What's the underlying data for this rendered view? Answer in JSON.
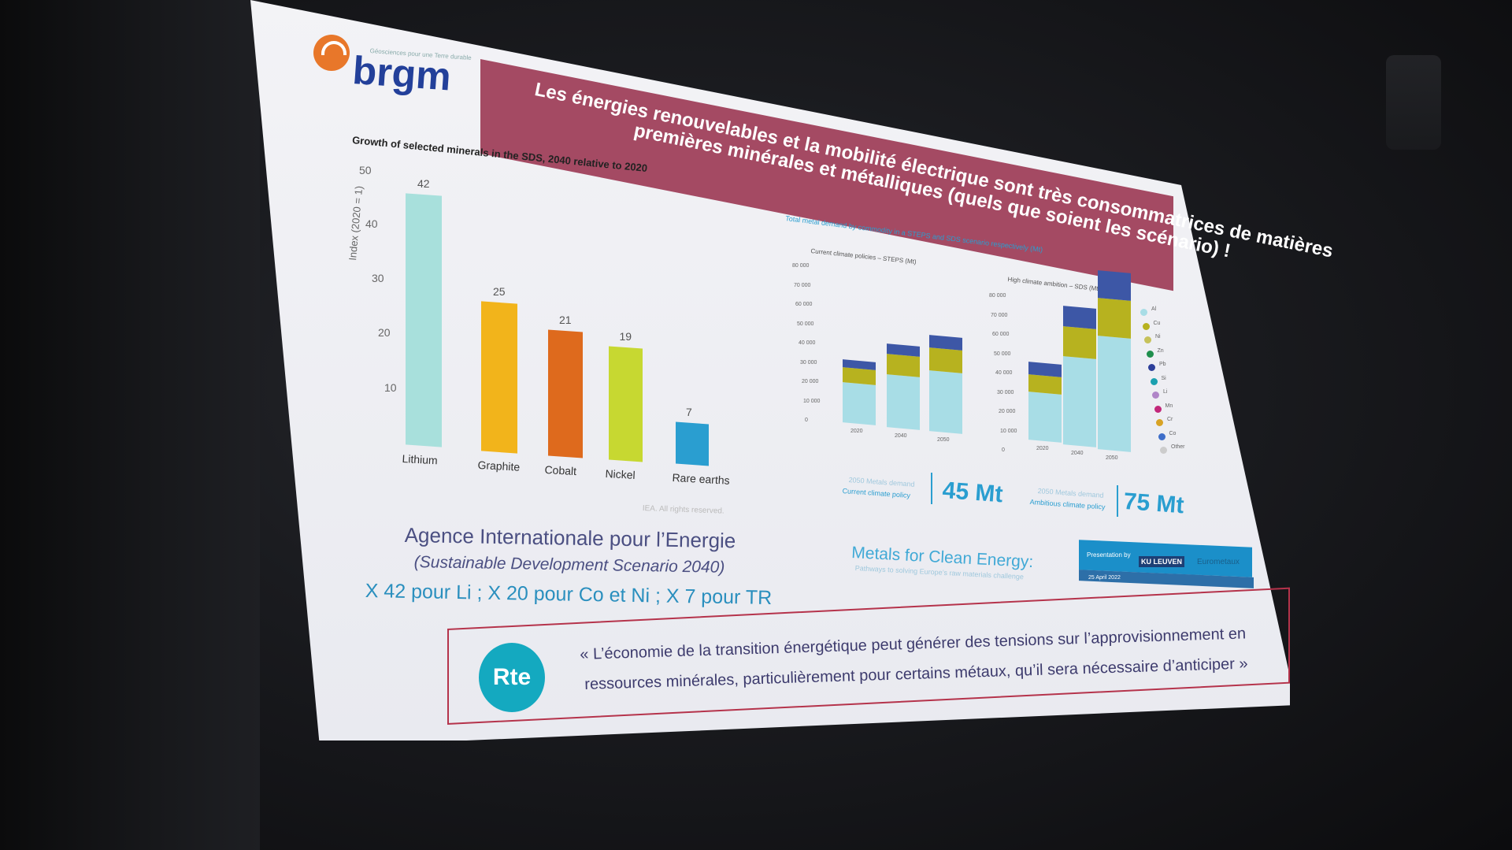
{
  "slide": {
    "logo": {
      "name": "brgm",
      "tagline": "Géosciences pour une Terre durable"
    },
    "banner": {
      "line1": "Les énergies renouvelables et la mobilité électrique sont très consommatrices de matières",
      "line2": "premières minérales et métalliques (quels que soient les scénario) !"
    },
    "left_chart": {
      "title": "Growth of selected minerals in the SDS, 2040 relative to 2020",
      "ylabel": "Index (2020 = 1)",
      "yticks": [
        "50",
        "40",
        "30",
        "20",
        "10"
      ],
      "credit": "IEA. All rights reserved."
    },
    "iea": {
      "line1": "Agence Internationale pour l’Energie",
      "line2": "(Sustainable Development Scenario 2040)",
      "line3": "X 42 pour Li ; X 20 pour Co et Ni  ; X 7 pour TR"
    },
    "right_chart": {
      "title": "Total metal demand by commodity in a STEPS and SDS scenario respectively (Mt)",
      "panel1_title": "Current climate policies – STEPS (Mt)",
      "panel2_title": "High climate ambition – SDS (Mt)",
      "yticks1": [
        "80 000",
        "70 000",
        "60 000",
        "50 000",
        "40 000",
        "30 000",
        "20 000",
        "10 000",
        "0"
      ],
      "yticks2": [
        "80 000",
        "70 000",
        "60 000",
        "50 000",
        "40 000",
        "30 000",
        "20 000",
        "10 000",
        "0"
      ],
      "xticks": [
        "2020",
        "2040",
        "2050"
      ],
      "legend": [
        "Al",
        "Cu",
        "Ni",
        "Zn",
        "Pb",
        "Si",
        "Li",
        "Mn",
        "Cr",
        "Co",
        "Other"
      ],
      "callout1_label1": "2050 Metals demand",
      "callout1_label2": "Current climate policy",
      "callout1_value": "45 Mt",
      "callout2_label1": "2050 Metals demand",
      "callout2_label2": "Ambitious climate policy",
      "callout2_value": "75 Mt",
      "metals_title": "Metals for Clean Energy:",
      "metals_subtitle": "Pathways to solving Europe’s raw materials challenge",
      "strip_text1": "Presentation by",
      "strip_text2": "KU LEUVEN",
      "strip_text3": "Eurometaux",
      "strip_date": "25 April 2022"
    },
    "quote": {
      "logo": "Rte",
      "line1": "« L’économie de la transition énergétique peut générer des tensions sur l’approvisionnement en",
      "line2": "ressources minérales, particulièrement pour certains métaux, qu’il sera nécessaire d’anticiper »"
    },
    "colors": {
      "banner": "#a44a63",
      "lithium": "#a8e0dc",
      "graphite": "#f2b41b",
      "cobalt": "#de6a1d",
      "nickel": "#c7d831",
      "rare_earths": "#2a9ed0",
      "al": "#a8dde6",
      "cu": "#b7b21f"
    }
  },
  "chart_data": [
    {
      "type": "bar",
      "title": "Growth of selected minerals in the SDS, 2040 relative to 2020",
      "ylabel": "Index (2020 = 1)",
      "ylim": [
        0,
        50
      ],
      "categories": [
        "Lithium",
        "Graphite",
        "Cobalt",
        "Nickel",
        "Rare earths"
      ],
      "values": [
        42,
        25,
        21,
        19,
        7
      ],
      "data_labels": [
        "42",
        "25",
        "21",
        "19",
        "7"
      ]
    },
    {
      "type": "bar",
      "title": "Current climate policies – STEPS (Mt)",
      "categories": [
        "2020",
        "2040",
        "2050"
      ],
      "ylim": [
        0,
        80000
      ],
      "series": [
        {
          "name": "Al",
          "values": [
            16000,
            21000,
            24000
          ]
        },
        {
          "name": "Cu",
          "values": [
            6000,
            8000,
            9000
          ]
        },
        {
          "name": "Other",
          "values": [
            3000,
            4000,
            5000
          ]
        }
      ]
    },
    {
      "type": "bar",
      "title": "High climate ambition – SDS (Mt)",
      "categories": [
        "2020",
        "2040",
        "2050"
      ],
      "ylim": [
        0,
        80000
      ],
      "series": [
        {
          "name": "Al",
          "values": [
            19000,
            35000,
            45000
          ]
        },
        {
          "name": "Cu",
          "values": [
            7000,
            12000,
            15000
          ]
        },
        {
          "name": "Other",
          "values": [
            5000,
            8000,
            11000
          ]
        }
      ]
    }
  ]
}
